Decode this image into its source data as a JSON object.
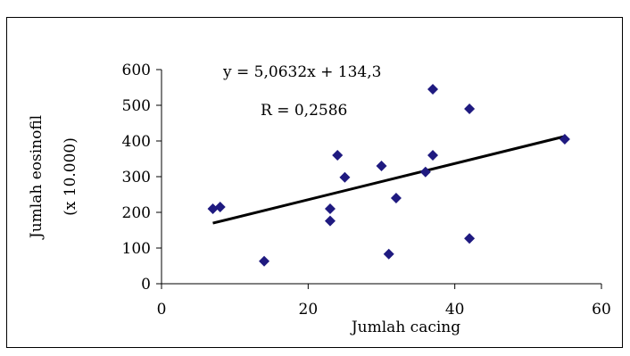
{
  "chart_data": {
    "type": "scatter",
    "title": "",
    "xlabel": "Jumlah cacing",
    "ylabel_line1": "Jumlah eosinofil",
    "ylabel_line2": "(x 10.000)",
    "xlim": [
      0,
      60
    ],
    "ylim": [
      0,
      600
    ],
    "x_ticks": [
      0,
      20,
      40,
      60
    ],
    "y_ticks": [
      0,
      100,
      200,
      300,
      400,
      500,
      600
    ],
    "grid": false,
    "legend": "none",
    "marker_color": "#1f1a80",
    "trendline_color": "#000000",
    "equation": "y = 5,0632x + 134,3",
    "r_value": "R = 0,2586",
    "trendline": {
      "slope": 5.0632,
      "intercept": 134.3,
      "x_start": 7,
      "x_end": 55
    },
    "points": [
      {
        "x": 7,
        "y": 210
      },
      {
        "x": 8,
        "y": 215
      },
      {
        "x": 14,
        "y": 63
      },
      {
        "x": 23,
        "y": 210
      },
      {
        "x": 23,
        "y": 176
      },
      {
        "x": 24,
        "y": 360
      },
      {
        "x": 25,
        "y": 298
      },
      {
        "x": 30,
        "y": 330
      },
      {
        "x": 31,
        "y": 83
      },
      {
        "x": 32,
        "y": 240
      },
      {
        "x": 36,
        "y": 313
      },
      {
        "x": 37,
        "y": 545
      },
      {
        "x": 37,
        "y": 360
      },
      {
        "x": 42,
        "y": 490
      },
      {
        "x": 42,
        "y": 127
      },
      {
        "x": 55,
        "y": 405
      }
    ]
  }
}
